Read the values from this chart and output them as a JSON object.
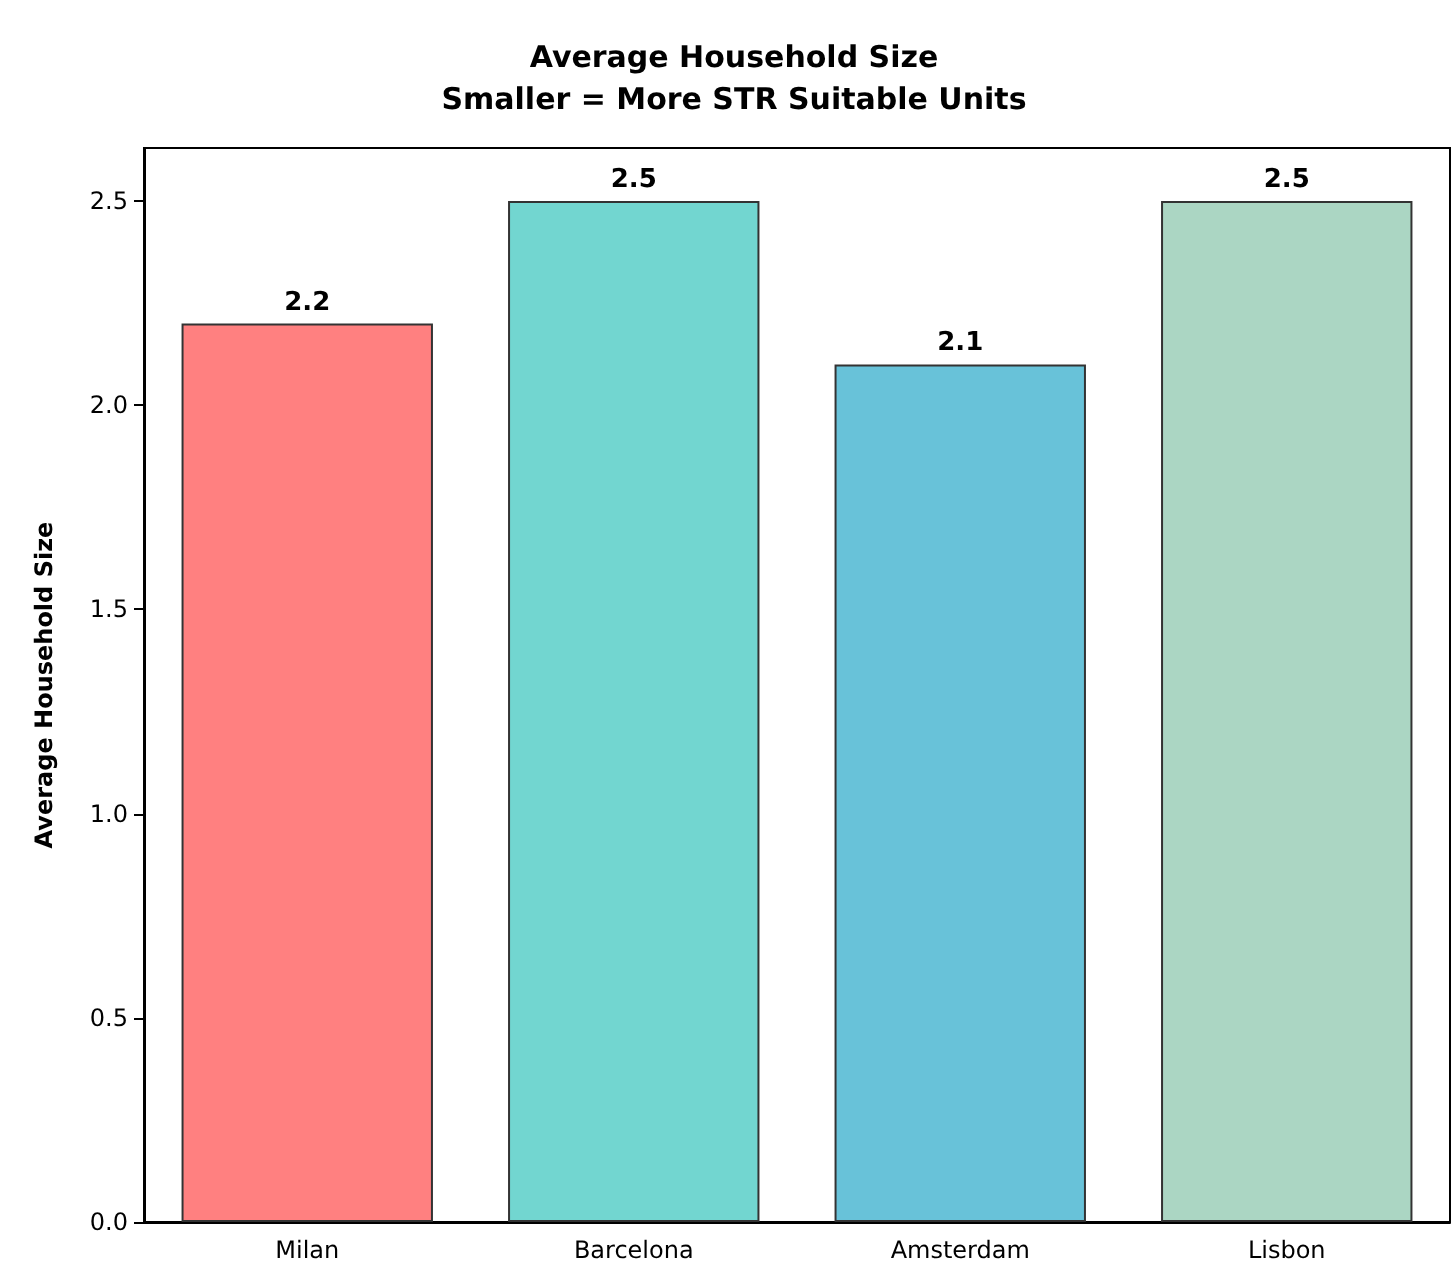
{
  "chart_data": {
    "type": "bar",
    "title": "Average Household Size",
    "subtitle": "Smaller = More STR Suitable Units",
    "ylabel": "Average Household Size",
    "categories": [
      "Milan",
      "Barcelona",
      "Amsterdam",
      "Lisbon"
    ],
    "values": [
      2.2,
      2.5,
      2.1,
      2.5
    ],
    "colors": [
      "#ff8080",
      "#72d6d0",
      "#68c2d9",
      "#abd6c3"
    ],
    "ylim": [
      0,
      2.63
    ],
    "yticks": [
      {
        "value": 0,
        "label": "0.0"
      },
      0.5,
      {
        "value": 1,
        "label": "1.0"
      },
      1.5,
      {
        "value": 2,
        "label": "2.0"
      },
      2.5
    ],
    "grid": false,
    "data_labels": true
  }
}
